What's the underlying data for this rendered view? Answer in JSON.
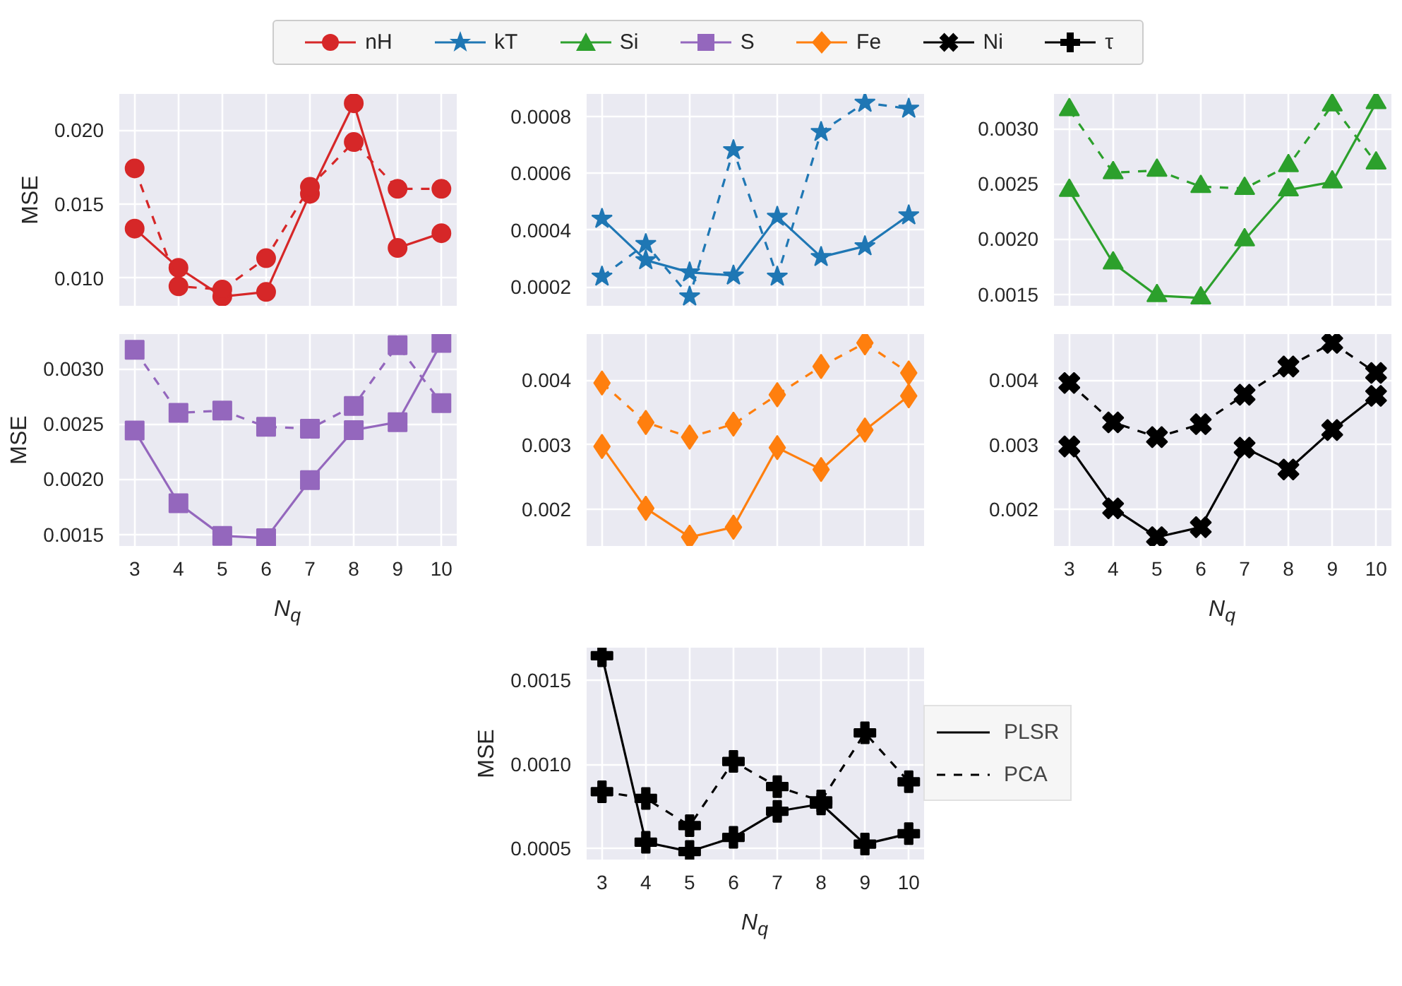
{
  "chart_data": [
    {
      "type": "line",
      "marker": "circle",
      "ylabel": "MSE",
      "grid": true,
      "tick_labels": "y",
      "x": [
        3,
        4,
        5,
        6,
        7,
        8,
        9,
        10
      ],
      "xlim": [
        2.65,
        10.35
      ],
      "xticks": [
        3,
        4,
        5,
        6,
        7,
        8,
        9,
        10
      ],
      "ylim": [
        0.00812,
        0.02244
      ],
      "yticks": [
        {
          "value": 0.01,
          "label": "0.010"
        },
        0.015,
        {
          "value": 0.02,
          "label": "0.020"
        }
      ],
      "series": [
        {
          "color": "#d62728",
          "line_style": "solid",
          "values": [
            0.01334,
            0.01069,
            0.00875,
            0.00906,
            0.01569,
            0.02181,
            0.01203,
            0.01303
          ]
        },
        {
          "color": "#d62728",
          "line_style": "dashed",
          "values": [
            0.01741,
            0.00944,
            0.00922,
            0.01134,
            0.01616,
            0.01919,
            0.01603,
            0.01603
          ]
        }
      ]
    },
    {
      "type": "line",
      "marker": "star",
      "grid": true,
      "tick_labels": "y",
      "x": [
        3,
        4,
        5,
        6,
        7,
        8,
        9,
        10
      ],
      "xlim": [
        2.65,
        10.35
      ],
      "xticks": [
        3,
        4,
        5,
        6,
        7,
        8,
        9,
        10
      ],
      "ylim": [
        0.000133,
        0.00088
      ],
      "yticks": [
        0.0002,
        0.0004,
        0.0006,
        0.0008
      ],
      "series": [
        {
          "color": "#1f77b4",
          "line_style": "solid",
          "values": [
            0.00044,
            0.000294,
            0.000251,
            0.00024,
            0.000447,
            0.000305,
            0.000343,
            0.000452
          ]
        },
        {
          "color": "#1f77b4",
          "line_style": "dashed",
          "values": [
            0.000236,
            0.000351,
            0.000166,
            0.000682,
            0.000236,
            0.000746,
            0.000849,
            0.000828
          ]
        }
      ]
    },
    {
      "type": "line",
      "marker": "triangle",
      "grid": true,
      "tick_labels": "y",
      "x": [
        3,
        4,
        5,
        6,
        7,
        8,
        9,
        10
      ],
      "xlim": [
        2.65,
        10.35
      ],
      "xticks": [
        3,
        4,
        5,
        6,
        7,
        8,
        9,
        10
      ],
      "ylim": [
        0.001395,
        0.003315
      ],
      "yticks": [
        0.0015,
        {
          "value": 0.002,
          "label": "0.0020"
        },
        0.0025,
        {
          "value": 0.003,
          "label": "0.0030"
        }
      ],
      "series": [
        {
          "color": "#2ca02c",
          "line_style": "solid",
          "values": [
            0.002441,
            0.001782,
            0.001487,
            0.001466,
            0.001992,
            0.002445,
            0.002517,
            0.003235
          ]
        },
        {
          "color": "#2ca02c",
          "line_style": "dashed",
          "values": [
            0.003172,
            0.002601,
            0.002622,
            0.002475,
            0.002458,
            0.002664,
            0.003214,
            0.002689
          ]
        }
      ]
    },
    {
      "type": "line",
      "marker": "square",
      "ylabel": "MSE",
      "xlabel": "N$_{q}$",
      "grid": true,
      "x": [
        3,
        4,
        5,
        6,
        7,
        8,
        9,
        10
      ],
      "xlim": [
        2.65,
        10.35
      ],
      "xticks": [
        3,
        4,
        5,
        6,
        7,
        8,
        9,
        10
      ],
      "ylim": [
        0.001395,
        0.003315
      ],
      "yticks": [
        0.0015,
        {
          "value": 0.002,
          "label": "0.0020"
        },
        0.0025,
        {
          "value": 0.003,
          "label": "0.0030"
        }
      ],
      "series": [
        {
          "color": "#9467bd",
          "line_style": "solid",
          "values": [
            0.002441,
            0.001782,
            0.001487,
            0.001466,
            0.001992,
            0.002445,
            0.002517,
            0.003235
          ]
        },
        {
          "color": "#9467bd",
          "line_style": "dashed",
          "values": [
            0.003172,
            0.002601,
            0.002622,
            0.002475,
            0.002458,
            0.002664,
            0.003214,
            0.002689
          ]
        }
      ]
    },
    {
      "type": "line",
      "marker": "diamond",
      "grid": true,
      "tick_labels": "y",
      "x": [
        3,
        4,
        5,
        6,
        7,
        8,
        9,
        10
      ],
      "xlim": [
        2.65,
        10.35
      ],
      "xticks": [
        3,
        4,
        5,
        6,
        7,
        8,
        9,
        10
      ],
      "ylim": [
        0.001436,
        0.00471
      ],
      "yticks": [
        0.002,
        0.003,
        0.004
      ],
      "series": [
        {
          "color": "#ff7f0e",
          "line_style": "solid",
          "values": [
            0.002973,
            0.002018,
            0.001573,
            0.001727,
            0.002955,
            0.002618,
            0.003227,
            0.003755
          ]
        },
        {
          "color": "#ff7f0e",
          "line_style": "dashed",
          "values": [
            0.003955,
            0.003345,
            0.003118,
            0.003318,
            0.003773,
            0.004209,
            0.004573,
            0.004109
          ]
        }
      ]
    },
    {
      "type": "line",
      "marker": "x",
      "xlabel": "N$_{q}$",
      "grid": true,
      "x": [
        3,
        4,
        5,
        6,
        7,
        8,
        9,
        10
      ],
      "xlim": [
        2.65,
        10.35
      ],
      "xticks": [
        3,
        4,
        5,
        6,
        7,
        8,
        9,
        10
      ],
      "ylim": [
        0.001436,
        0.00471
      ],
      "yticks": [
        0.002,
        0.003,
        0.004
      ],
      "series": [
        {
          "color": "#000000",
          "line_style": "solid",
          "values": [
            0.002973,
            0.002018,
            0.001573,
            0.001727,
            0.002955,
            0.002618,
            0.003227,
            0.003755
          ]
        },
        {
          "color": "#000000",
          "line_style": "dashed",
          "values": [
            0.003955,
            0.003345,
            0.003118,
            0.003318,
            0.003773,
            0.004209,
            0.004573,
            0.004109
          ]
        }
      ]
    },
    {
      "type": "line",
      "marker": "plus",
      "ylabel": "MSE",
      "xlabel": "N$_{q}$",
      "grid": true,
      "legend": "right",
      "x": [
        3,
        4,
        5,
        6,
        7,
        8,
        9,
        10
      ],
      "xlim": [
        2.65,
        10.35
      ],
      "xticks": [
        3,
        4,
        5,
        6,
        7,
        8,
        9,
        10
      ],
      "ylim": [
        0.000434,
        0.001695
      ],
      "yticks": [
        0.0005,
        {
          "value": 0.001,
          "label": "0.0010"
        },
        0.0015
      ],
      "series": [
        {
          "name": "PLSR",
          "color": "#000000",
          "line_style": "solid",
          "values": [
            0.001647,
            0.000537,
            0.000482,
            0.000566,
            0.000721,
            0.000765,
            0.000526,
            0.000588
          ]
        },
        {
          "name": "PCA",
          "color": "#000000",
          "line_style": "dashed",
          "values": [
            0.000838,
            0.000798,
            0.000636,
            0.001018,
            0.000868,
            0.000783,
            0.001188,
            0.000897
          ]
        }
      ]
    },
    {
      "type": "other",
      "legend": "top",
      "series": [
        {
          "name": "nH",
          "color": "#d62728",
          "marker": "circle"
        },
        {
          "name": "kT",
          "color": "#1f77b4",
          "marker": "star"
        },
        {
          "name": "Si",
          "color": "#2ca02c",
          "marker": "triangle"
        },
        {
          "name": "S",
          "color": "#9467bd",
          "marker": "square"
        },
        {
          "name": "Fe",
          "color": "#ff7f0e",
          "marker": "diamond"
        },
        {
          "name": "Ni",
          "color": "#000000",
          "marker": "x"
        },
        {
          "name": "τ",
          "color": "#000000",
          "marker": "plus"
        }
      ]
    }
  ]
}
